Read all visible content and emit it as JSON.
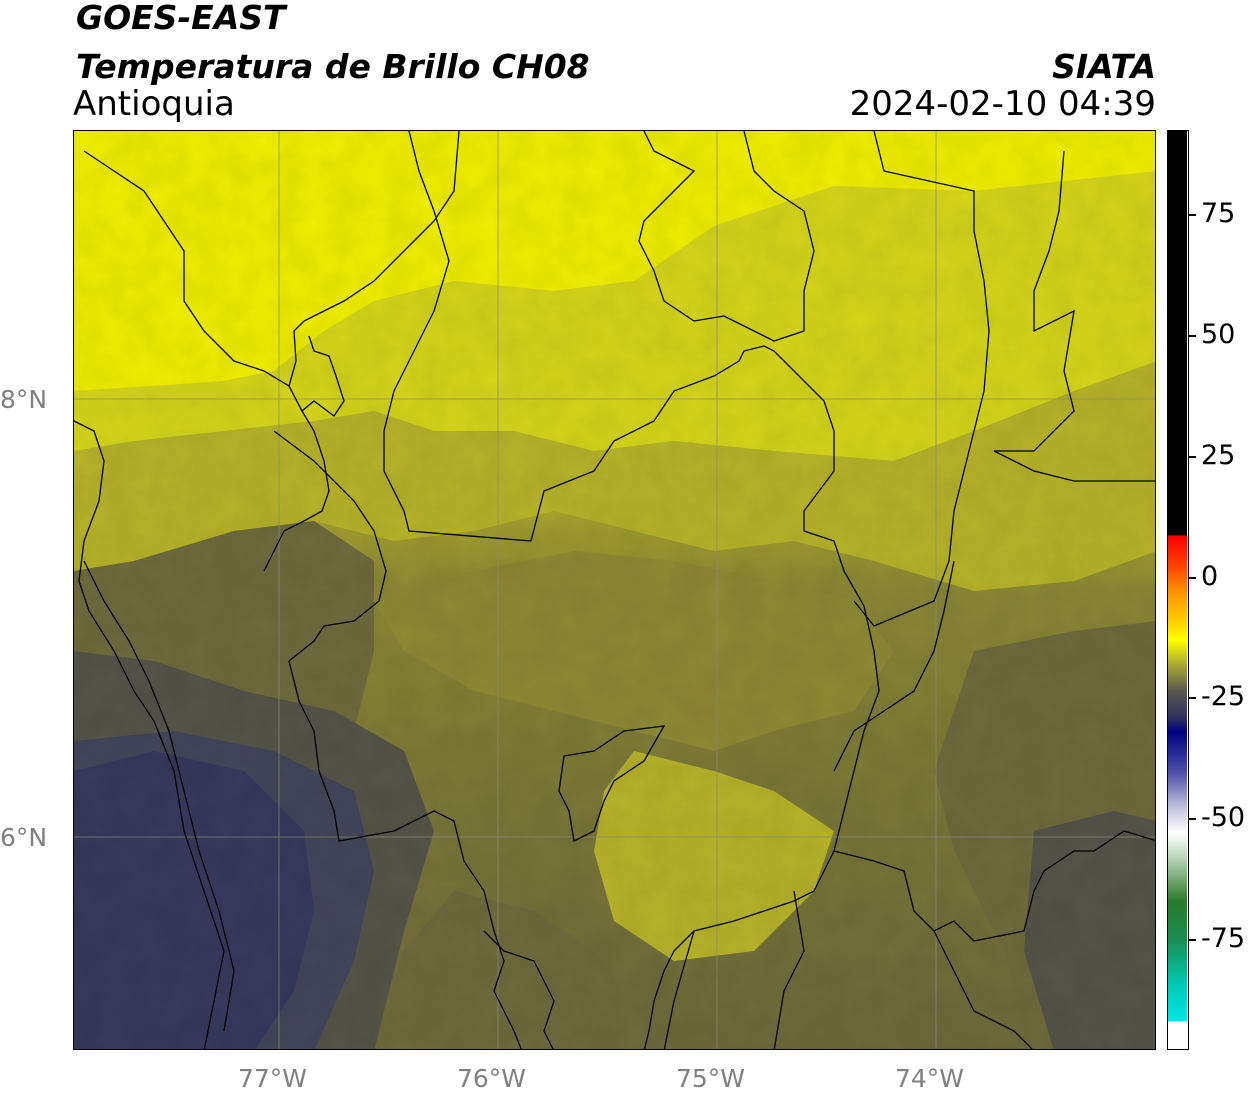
{
  "header": {
    "satellite": "GOES-EAST",
    "product": "Temperatura de Brillo CH08",
    "region": "Antioquia",
    "organization": "SIATA",
    "timestamp": "2024-02-10 04:39"
  },
  "map": {
    "longitude_labels": [
      "77°W",
      "76°W",
      "75°W",
      "74°W"
    ],
    "latitude_labels": [
      "8°N",
      "6°N"
    ],
    "gridlines": true,
    "field_colors": {
      "bright_yellow": "#f0f000",
      "yellow": "#d6d61c",
      "olive_yellow": "#b8b42a",
      "olive": "#8f8b35",
      "dark_olive": "#6f6c3e",
      "gray_olive": "#56554a",
      "slate": "#44465a",
      "navy_slate": "#383a5e"
    }
  },
  "colorbar": {
    "tick_labels": [
      "75",
      "50",
      "25",
      "0",
      "-25",
      "-50",
      "-75"
    ],
    "range": [
      -93,
      92
    ],
    "colors": {
      "top": "#000000",
      "red": "#ff0000",
      "orange": "#ff8c00",
      "yellow": "#ffff00",
      "olive": "#7a7a3a",
      "navy": "#000080",
      "white": "#ffffff",
      "green": "#2a7a2a",
      "cyan": "#00e5e5"
    }
  }
}
